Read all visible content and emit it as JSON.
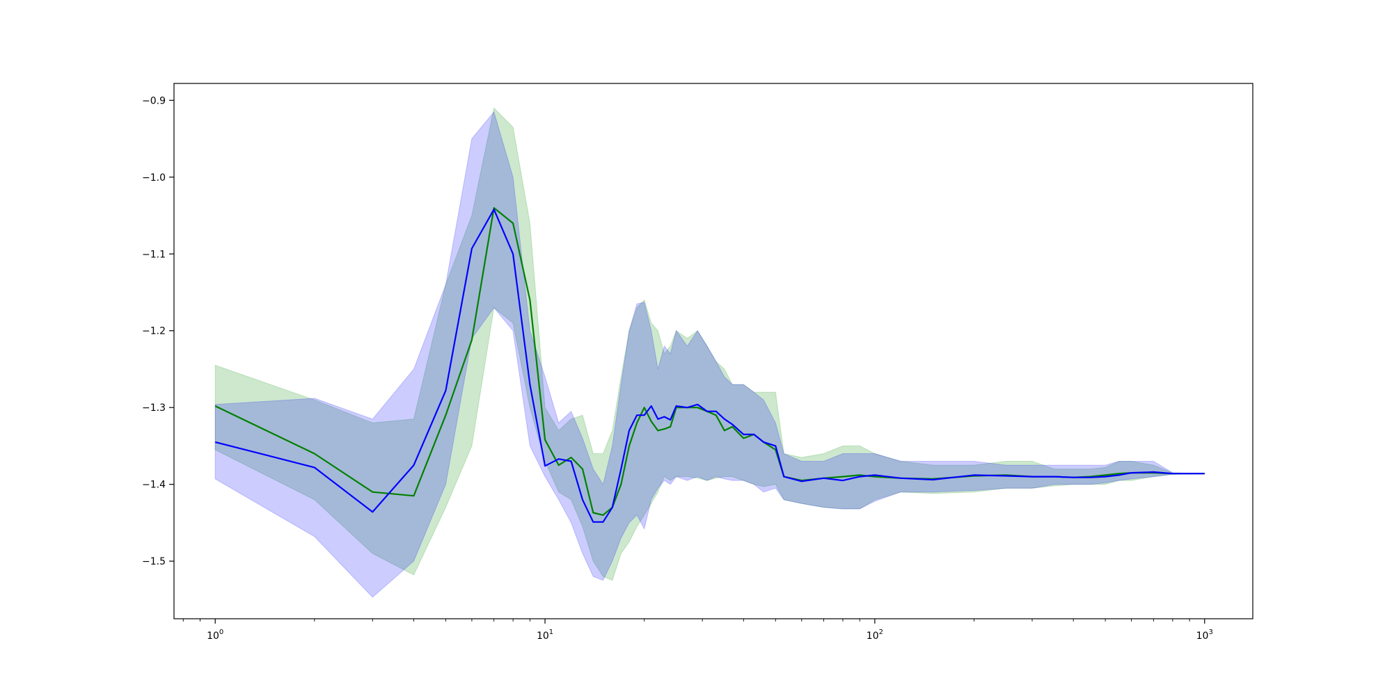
{
  "chart_data": {
    "type": "line",
    "xscale": "log",
    "xlim": [
      0.75,
      1400
    ],
    "ylim": [
      -1.575,
      -0.878
    ],
    "xticks": [
      {
        "value": 1,
        "base": "10",
        "exp": "0"
      },
      {
        "value": 10,
        "base": "10",
        "exp": "1"
      },
      {
        "value": 100,
        "base": "10",
        "exp": "2"
      },
      {
        "value": 1000,
        "base": "10",
        "exp": "3"
      }
    ],
    "yticks": [
      {
        "value": -0.9,
        "label": "−0.9"
      },
      {
        "value": -1.0,
        "label": "−1.0"
      },
      {
        "value": -1.1,
        "label": "−1.1"
      },
      {
        "value": -1.2,
        "label": "−1.2"
      },
      {
        "value": -1.3,
        "label": "−1.3"
      },
      {
        "value": -1.4,
        "label": "−1.4"
      },
      {
        "value": -1.5,
        "label": "−1.5"
      }
    ],
    "grid": false,
    "legend": "none",
    "series": [
      {
        "color": "#008000",
        "band_color": "#2ca02c",
        "band_opacity": 0.24,
        "x": [
          1,
          2,
          3,
          4,
          5,
          6,
          7,
          8,
          9,
          10,
          11,
          12,
          13,
          14,
          15,
          16,
          17,
          18,
          19,
          20,
          21,
          22,
          23,
          24,
          25,
          27,
          29,
          31,
          33,
          35,
          37,
          40,
          43,
          46,
          50,
          53,
          60,
          70,
          80,
          90,
          100,
          120,
          150,
          200,
          250,
          300,
          350,
          400,
          450,
          500,
          550,
          600,
          700,
          800,
          1000
        ],
        "mean": [
          -1.298,
          -1.36,
          -1.41,
          -1.415,
          -1.31,
          -1.212,
          -1.04,
          -1.06,
          -1.16,
          -1.342,
          -1.375,
          -1.365,
          -1.38,
          -1.437,
          -1.44,
          -1.43,
          -1.4,
          -1.35,
          -1.32,
          -1.3,
          -1.318,
          -1.33,
          -1.328,
          -1.325,
          -1.3,
          -1.3,
          -1.3,
          -1.305,
          -1.31,
          -1.33,
          -1.325,
          -1.34,
          -1.335,
          -1.345,
          -1.355,
          -1.39,
          -1.395,
          -1.392,
          -1.39,
          -1.388,
          -1.39,
          -1.392,
          -1.393,
          -1.389,
          -1.388,
          -1.39,
          -1.39,
          -1.391,
          -1.39,
          -1.388,
          -1.386,
          -1.385,
          -1.385,
          -1.386,
          -1.386
        ],
        "upper": [
          -1.245,
          -1.29,
          -1.32,
          -1.315,
          -1.14,
          -1.05,
          -0.91,
          -0.935,
          -1.06,
          -1.3,
          -1.33,
          -1.315,
          -1.31,
          -1.36,
          -1.36,
          -1.33,
          -1.26,
          -1.2,
          -1.17,
          -1.16,
          -1.19,
          -1.2,
          -1.23,
          -1.22,
          -1.2,
          -1.21,
          -1.2,
          -1.22,
          -1.24,
          -1.25,
          -1.27,
          -1.27,
          -1.28,
          -1.28,
          -1.28,
          -1.36,
          -1.365,
          -1.36,
          -1.35,
          -1.35,
          -1.36,
          -1.37,
          -1.375,
          -1.375,
          -1.37,
          -1.37,
          -1.38,
          -1.38,
          -1.38,
          -1.378,
          -1.37,
          -1.37,
          -1.375,
          -1.385,
          -1.386
        ],
        "lower": [
          -1.355,
          -1.42,
          -1.49,
          -1.518,
          -1.43,
          -1.35,
          -1.17,
          -1.19,
          -1.3,
          -1.37,
          -1.41,
          -1.42,
          -1.455,
          -1.5,
          -1.52,
          -1.525,
          -1.49,
          -1.475,
          -1.455,
          -1.44,
          -1.425,
          -1.41,
          -1.39,
          -1.395,
          -1.39,
          -1.39,
          -1.392,
          -1.395,
          -1.392,
          -1.39,
          -1.39,
          -1.395,
          -1.4,
          -1.403,
          -1.4,
          -1.42,
          -1.425,
          -1.43,
          -1.432,
          -1.432,
          -1.42,
          -1.41,
          -1.412,
          -1.41,
          -1.405,
          -1.405,
          -1.402,
          -1.4,
          -1.4,
          -1.4,
          -1.395,
          -1.395,
          -1.39,
          -1.387,
          -1.386
        ]
      },
      {
        "color": "#0000ff",
        "band_color": "#0000ff",
        "band_opacity": 0.2,
        "x": [
          1,
          2,
          3,
          4,
          5,
          6,
          7,
          8,
          9,
          10,
          11,
          12,
          13,
          14,
          15,
          16,
          17,
          18,
          19,
          20,
          21,
          22,
          23,
          24,
          25,
          27,
          29,
          31,
          33,
          35,
          37,
          40,
          43,
          46,
          50,
          53,
          60,
          70,
          80,
          90,
          100,
          120,
          150,
          200,
          250,
          300,
          350,
          400,
          450,
          500,
          550,
          600,
          700,
          800,
          1000
        ],
        "mean": [
          -1.345,
          -1.378,
          -1.436,
          -1.375,
          -1.278,
          -1.093,
          -1.042,
          -1.1,
          -1.27,
          -1.376,
          -1.367,
          -1.37,
          -1.42,
          -1.449,
          -1.449,
          -1.43,
          -1.38,
          -1.33,
          -1.31,
          -1.31,
          -1.298,
          -1.315,
          -1.312,
          -1.316,
          -1.298,
          -1.3,
          -1.296,
          -1.305,
          -1.305,
          -1.315,
          -1.322,
          -1.335,
          -1.335,
          -1.345,
          -1.35,
          -1.39,
          -1.396,
          -1.392,
          -1.395,
          -1.39,
          -1.388,
          -1.392,
          -1.394,
          -1.388,
          -1.389,
          -1.39,
          -1.39,
          -1.391,
          -1.391,
          -1.39,
          -1.388,
          -1.385,
          -1.384,
          -1.386,
          -1.386
        ],
        "upper": [
          -1.296,
          -1.288,
          -1.315,
          -1.25,
          -1.14,
          -0.95,
          -0.915,
          -1.0,
          -1.2,
          -1.26,
          -1.32,
          -1.305,
          -1.34,
          -1.38,
          -1.4,
          -1.35,
          -1.27,
          -1.2,
          -1.165,
          -1.163,
          -1.2,
          -1.25,
          -1.22,
          -1.23,
          -1.2,
          -1.22,
          -1.2,
          -1.22,
          -1.24,
          -1.26,
          -1.27,
          -1.27,
          -1.28,
          -1.29,
          -1.32,
          -1.36,
          -1.37,
          -1.37,
          -1.36,
          -1.36,
          -1.36,
          -1.37,
          -1.37,
          -1.37,
          -1.375,
          -1.375,
          -1.375,
          -1.375,
          -1.375,
          -1.375,
          -1.37,
          -1.37,
          -1.37,
          -1.385,
          -1.386
        ],
        "lower": [
          -1.393,
          -1.468,
          -1.547,
          -1.5,
          -1.4,
          -1.21,
          -1.17,
          -1.2,
          -1.35,
          -1.39,
          -1.42,
          -1.45,
          -1.49,
          -1.52,
          -1.525,
          -1.5,
          -1.47,
          -1.45,
          -1.44,
          -1.458,
          -1.42,
          -1.405,
          -1.395,
          -1.4,
          -1.39,
          -1.395,
          -1.39,
          -1.395,
          -1.39,
          -1.393,
          -1.395,
          -1.395,
          -1.4,
          -1.41,
          -1.405,
          -1.42,
          -1.425,
          -1.43,
          -1.432,
          -1.432,
          -1.422,
          -1.41,
          -1.41,
          -1.408,
          -1.405,
          -1.405,
          -1.4,
          -1.4,
          -1.4,
          -1.398,
          -1.395,
          -1.393,
          -1.39,
          -1.387,
          -1.386
        ]
      }
    ]
  }
}
